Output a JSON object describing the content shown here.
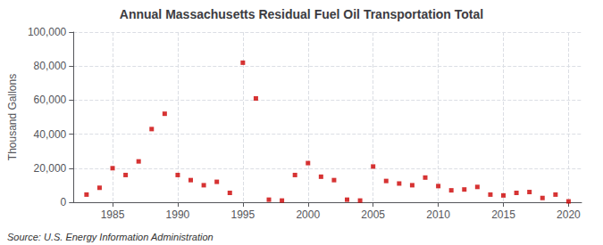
{
  "chart_data": {
    "type": "scatter",
    "title": "Annual Massachusetts Residual Fuel Oil Transportation Total",
    "ylabel": "Thousand Gallons",
    "annotation": "Source: U.S. Energy Information Administration",
    "color": "#cc0000",
    "marker": "square",
    "grid": true,
    "x": [
      1983,
      1984,
      1985,
      1986,
      1987,
      1988,
      1989,
      1990,
      1991,
      1992,
      1993,
      1994,
      1995,
      1996,
      1997,
      1998,
      1999,
      2000,
      2001,
      2002,
      2003,
      2004,
      2005,
      2006,
      2007,
      2008,
      2009,
      2010,
      2011,
      2012,
      2013,
      2014,
      2015,
      2016,
      2017,
      2018,
      2019,
      2020
    ],
    "values": [
      4500,
      8500,
      20000,
      16000,
      24000,
      43000,
      52000,
      16000,
      13000,
      10000,
      12000,
      5500,
      82000,
      61000,
      1500,
      1000,
      16000,
      23000,
      15000,
      13000,
      1500,
      1000,
      21000,
      12500,
      11000,
      10000,
      14500,
      9500,
      7000,
      7500,
      9000,
      4500,
      4000,
      5500,
      6000,
      2500,
      4500,
      500
    ],
    "xlim": [
      1982,
      2021
    ],
    "xticks": [
      1985,
      1990,
      1995,
      2000,
      2005,
      2010,
      2015,
      2020
    ],
    "ylim": [
      0,
      100000
    ],
    "yticks": [
      0,
      {
        "value": 20000,
        "label": "20,000"
      },
      {
        "value": 40000,
        "label": "40,000"
      },
      {
        "value": 60000,
        "label": "60,000"
      },
      {
        "value": 80000,
        "label": "80,000"
      },
      {
        "value": 100000,
        "label": "100,000"
      }
    ]
  }
}
